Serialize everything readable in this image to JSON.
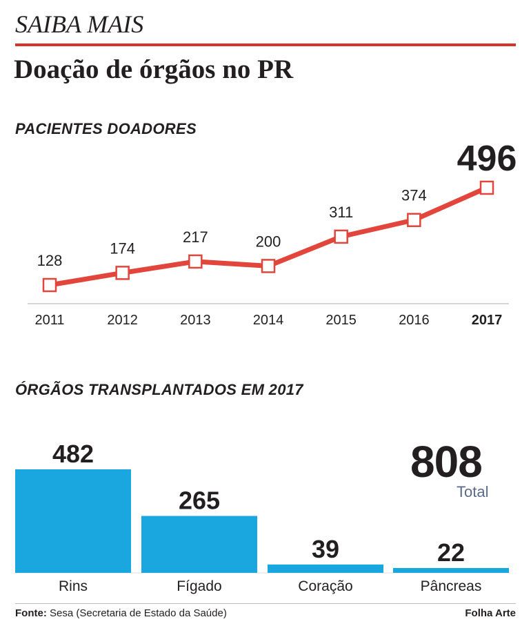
{
  "kicker": "SAIBA MAIS",
  "headline": "Doação de órgãos no PR",
  "colors": {
    "accent_red": "#e2453b",
    "bar_blue": "#1aa6df",
    "rule_red": "#d7332b"
  },
  "chart_data": [
    {
      "type": "line",
      "title": "PACIENTES DOADORES",
      "x": [
        "2011",
        "2012",
        "2013",
        "2014",
        "2015",
        "2016",
        "2017"
      ],
      "series": [
        {
          "values": [
            128,
            174,
            217,
            200,
            311,
            374,
            496
          ]
        }
      ],
      "highlight": "2017",
      "marker": "hollow-square",
      "ylim": [
        100,
        510
      ],
      "grid": false
    },
    {
      "type": "bar",
      "title": "ÓRGÃOS TRANSPLANTADOS EM 2017",
      "categories": [
        "Rins",
        "Fígado",
        "Coração",
        "Pâncreas"
      ],
      "values": [
        482,
        265,
        39,
        22
      ],
      "ylim": [
        0,
        482
      ],
      "total": {
        "value": "808",
        "label": "Total"
      }
    }
  ],
  "footer": {
    "source_label": "Fonte:",
    "source_text": " Sesa (Secretaria de Estado da Saúde)",
    "credit": "Folha Arte"
  }
}
